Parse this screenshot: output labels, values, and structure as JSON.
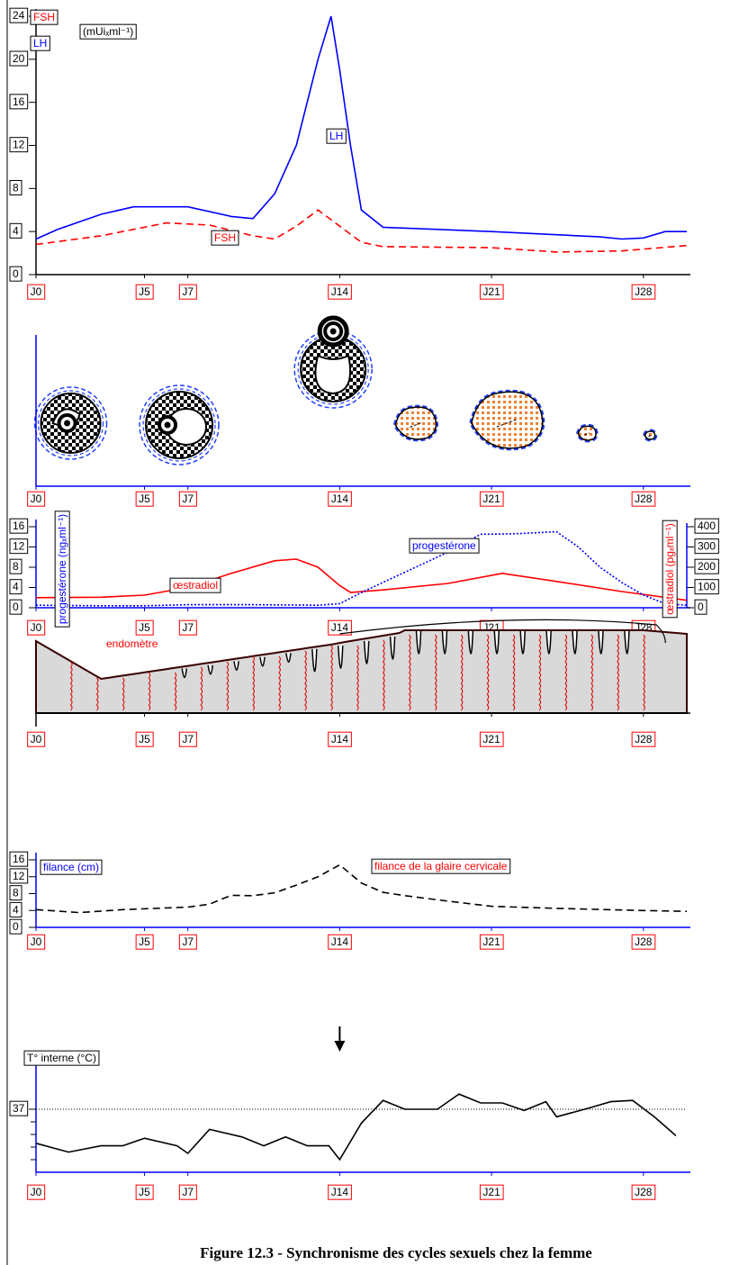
{
  "chart_data": [
    {
      "type": "line",
      "unit": "(mUiₓml⁻¹)",
      "xlim": [
        0,
        30
      ],
      "xticks": [
        {
          "value": 0,
          "label": "J0"
        },
        {
          "value": 5,
          "label": "J5"
        },
        {
          "value": 7,
          "label": "J7"
        },
        {
          "value": 14,
          "label": "J14"
        },
        {
          "value": 21,
          "label": "J21"
        },
        {
          "value": 28,
          "label": "J28"
        }
      ],
      "ylim": [
        0,
        24
      ],
      "yticks": [
        0,
        4,
        8,
        12,
        16,
        20,
        24
      ],
      "annotations": [
        "LH",
        "FSH"
      ],
      "series": [
        {
          "name": "FSH",
          "color": "#ff0000",
          "dash": "dashed",
          "x": [
            0,
            3,
            6,
            8,
            10,
            11,
            12,
            13,
            14,
            15,
            16,
            21,
            24,
            27,
            30
          ],
          "values": [
            2.8,
            3.6,
            4.8,
            4.6,
            3.6,
            3.3,
            4.5,
            6,
            4.5,
            3,
            2.6,
            2.5,
            2.1,
            2.2,
            2.7
          ]
        },
        {
          "name": "LH",
          "color": "#0000ff",
          "dash": "solid",
          "x": [
            0,
            1,
            3,
            4.5,
            7,
            9,
            10,
            11,
            12,
            13,
            13.6,
            14,
            14.5,
            15,
            16,
            21,
            26,
            27,
            28,
            29,
            30
          ],
          "values": [
            3.3,
            4.2,
            5.6,
            6.3,
            6.3,
            5.4,
            5.2,
            7.5,
            12,
            20,
            24,
            19,
            12,
            6,
            4.4,
            4,
            3.5,
            3.3,
            3.4,
            4,
            4
          ]
        }
      ]
    },
    {
      "type": "illustration",
      "xlim": [
        0,
        30
      ],
      "xticks": [
        {
          "value": 0,
          "label": "J0"
        },
        {
          "value": 5,
          "label": "J5"
        },
        {
          "value": 7,
          "label": "J7"
        },
        {
          "value": 14,
          "label": "J14"
        },
        {
          "value": 21,
          "label": "J21"
        },
        {
          "value": 28,
          "label": "J28"
        }
      ]
    },
    {
      "type": "line",
      "ylabel": "progestérone (ngₓml⁻¹)",
      "y2label": "œstradiol (pgₓml⁻¹)",
      "xlim": [
        0,
        30
      ],
      "xticks": [
        {
          "value": 0,
          "label": "J0"
        },
        {
          "value": 5,
          "label": "J5"
        },
        {
          "value": 7,
          "label": "J7"
        },
        {
          "value": 14,
          "label": "J14"
        },
        {
          "value": 21,
          "label": "J21"
        },
        {
          "value": 28,
          "label": "J28"
        }
      ],
      "ylim": [
        0,
        16
      ],
      "yticks": [
        0,
        4,
        8,
        12,
        16
      ],
      "y2lim": [
        0,
        400
      ],
      "y2ticks": [
        0,
        100,
        200,
        300,
        400
      ],
      "series": [
        {
          "name": "œstradiol",
          "color": "#ff0000",
          "dash": "solid",
          "axis": "y2",
          "x": [
            0,
            3,
            5,
            7,
            9,
            11,
            12,
            13,
            14,
            14.5,
            16,
            19,
            21.5,
            24,
            27,
            30
          ],
          "values": [
            50,
            52,
            62,
            100,
            170,
            232,
            240,
            200,
            110,
            75,
            88,
            120,
            170,
            130,
            80,
            37
          ]
        },
        {
          "name": "progestérone",
          "color": "#0000ff",
          "dash": "dotted",
          "x": [
            0,
            3,
            5,
            7,
            10,
            13,
            14,
            15,
            17,
            19,
            20.5,
            22,
            24,
            25,
            26,
            27,
            28,
            29,
            30
          ],
          "values": [
            0.5,
            0.4,
            0.4,
            0.6,
            0.6,
            0.5,
            0.8,
            3,
            7,
            11,
            14.5,
            14.6,
            15,
            12,
            8,
            5,
            2.5,
            0.8,
            0.5
          ]
        }
      ]
    },
    {
      "type": "illustration",
      "label": "endomètre",
      "xlim": [
        0,
        30
      ],
      "xticks": [
        {
          "value": 0,
          "label": "J0"
        },
        {
          "value": 5,
          "label": "J5"
        },
        {
          "value": 7,
          "label": "J7"
        },
        {
          "value": 14,
          "label": "J14"
        },
        {
          "value": 21,
          "label": "J21"
        },
        {
          "value": 28,
          "label": "J28"
        }
      ]
    },
    {
      "type": "line",
      "ylabel": "filance (cm)",
      "xlim": [
        0,
        30
      ],
      "xticks": [
        {
          "value": 0,
          "label": "J0"
        },
        {
          "value": 5,
          "label": "J5"
        },
        {
          "value": 7,
          "label": "J7"
        },
        {
          "value": 14,
          "label": "J14"
        },
        {
          "value": 21,
          "label": "J21"
        },
        {
          "value": 28,
          "label": "J28"
        }
      ],
      "ylim": [
        0,
        16
      ],
      "yticks": [
        0,
        4,
        8,
        12,
        16
      ],
      "series": [
        {
          "name": "filance de la glaire cervicale",
          "color": "#000000",
          "dash": "dashed",
          "x": [
            0,
            2,
            4,
            7,
            8,
            9,
            10,
            11,
            12,
            13,
            14,
            15,
            16,
            17,
            19,
            21,
            24,
            28,
            30
          ],
          "values": [
            4.2,
            3.5,
            4.2,
            4.8,
            5.5,
            7.6,
            7.5,
            8.2,
            10,
            12,
            14.8,
            10.5,
            8.3,
            7.5,
            6.2,
            5,
            4.5,
            4,
            3.8
          ]
        }
      ]
    },
    {
      "type": "line",
      "ylabel": "T° interne (°C)",
      "xlim": [
        0,
        30
      ],
      "xticks": [
        {
          "value": 0,
          "label": "J0"
        },
        {
          "value": 5,
          "label": "J5"
        },
        {
          "value": 7,
          "label": "J7"
        },
        {
          "value": 14,
          "label": "J14"
        },
        {
          "value": 21,
          "label": "J21"
        },
        {
          "value": 28,
          "label": "J28"
        }
      ],
      "ylim": [
        36.5,
        37.4
      ],
      "yticks": [
        37
      ],
      "grid": true,
      "series": [
        {
          "name": null,
          "color": "#000000",
          "dash": "solid",
          "x": [
            0,
            1.5,
            3,
            4,
            5,
            6.5,
            7,
            8,
            9.5,
            10.5,
            11.5,
            12.5,
            13.5,
            14,
            15,
            16,
            17,
            18.5,
            19.5,
            20.5,
            21.5,
            22.5,
            23.5,
            24,
            25.5,
            26.5,
            27.5,
            28.5,
            29.5
          ],
          "values": [
            36.73,
            36.66,
            36.71,
            36.71,
            36.77,
            36.71,
            36.65,
            36.84,
            36.78,
            36.71,
            36.78,
            36.71,
            36.71,
            36.6,
            36.89,
            37.07,
            37,
            37,
            37.12,
            37.05,
            37.05,
            36.99,
            37.06,
            36.94,
            37.01,
            37.06,
            37.07,
            36.94,
            36.79
          ]
        }
      ]
    }
  ],
  "caption": "Figure 12.3 - Synchronisme des cycles sexuels chez la femme"
}
